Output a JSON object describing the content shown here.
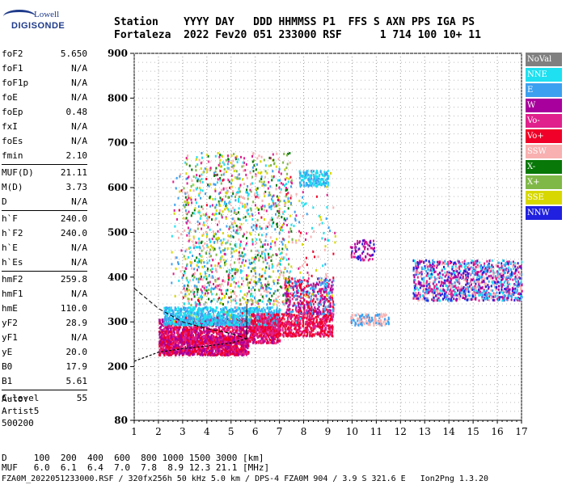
{
  "logo": {
    "top": "Lowell",
    "bottom": "DIGISONDE"
  },
  "header": {
    "line1": "Station    YYYY DAY   DDD HHMMSS P1  FFS S AXN PPS IGA PS",
    "line2": "Fortaleza  2022 Fev20 051 233000 RSF      1 714 100 10+ 11"
  },
  "params": [
    {
      "name": "foF2",
      "value": "5.650"
    },
    {
      "name": "foF1",
      "value": "N/A"
    },
    {
      "name": "foF1p",
      "value": "N/A"
    },
    {
      "name": "foE",
      "value": "N/A"
    },
    {
      "name": "foEp",
      "value": "0.48"
    },
    {
      "name": "fxI",
      "value": "N/A"
    },
    {
      "name": "foEs",
      "value": "N/A"
    },
    {
      "name": "fmin",
      "value": "2.10"
    },
    {
      "sep": true
    },
    {
      "name": "MUF(D)",
      "value": "21.11"
    },
    {
      "name": "M(D)",
      "value": "3.73"
    },
    {
      "name": "D",
      "value": "N/A"
    },
    {
      "sep": true
    },
    {
      "name": "h`F",
      "value": "240.0"
    },
    {
      "name": "h`F2",
      "value": "240.0"
    },
    {
      "name": "h`E",
      "value": "N/A"
    },
    {
      "name": "h`Es",
      "value": "N/A"
    },
    {
      "sep": true
    },
    {
      "name": "hmF2",
      "value": "259.8"
    },
    {
      "name": "hmF1",
      "value": "N/A"
    },
    {
      "name": "hmE",
      "value": "110.0"
    },
    {
      "name": "yF2",
      "value": "28.9"
    },
    {
      "name": "yF1",
      "value": "N/A"
    },
    {
      "name": "yE",
      "value": "20.0"
    },
    {
      "name": "B0",
      "value": "17.9"
    },
    {
      "name": "B1",
      "value": "5.61"
    },
    {
      "sep": true
    },
    {
      "name": "C-level",
      "value": "55"
    }
  ],
  "auto": {
    "line1": "Auto:",
    "line2": "Artist5",
    "line3": "500200"
  },
  "legend": [
    {
      "label": "NoVal",
      "color": "#808080"
    },
    {
      "label": "NNE",
      "color": "#1ee0f0"
    },
    {
      "label": "E",
      "color": "#3ca0f0"
    },
    {
      "label": "W",
      "color": "#a8009c"
    },
    {
      "label": "Vo-",
      "color": "#e0208c"
    },
    {
      "label": "Vo+",
      "color": "#f00028"
    },
    {
      "label": "SSW",
      "color": "#f8b0b0"
    },
    {
      "label": "X-",
      "color": "#087808"
    },
    {
      "label": "X+",
      "color": "#80b848"
    },
    {
      "label": "SSE",
      "color": "#d8d800"
    },
    {
      "label": "NNW",
      "color": "#2020e0"
    }
  ],
  "footer": {
    "d_line": "D     100  200  400  600  800 1000 1500 3000 [km]",
    "muf_line": "MUF   6.0  6.1  6.4  7.0  7.8  8.9 12.3 21.1 [MHz]",
    "file_line": "FZA0M_2022051233000.RSF / 320fx256h 50 kHz 5.0 km / DPS-4 FZA0M 904 / 3.9 S 321.6 E   Ion2Png 1.3.20"
  },
  "chart_data": {
    "type": "scatter",
    "xlim": [
      1,
      17
    ],
    "ylim": [
      80,
      900
    ],
    "x_ticks": [
      "1",
      "2",
      "3",
      "4",
      "5",
      "6",
      "7",
      "8",
      "9",
      "10",
      "11",
      "12",
      "13",
      "14",
      "15",
      "16",
      "17"
    ],
    "y_ticks": [
      "80",
      "200",
      "300",
      "400",
      "500",
      "600",
      "700",
      "800",
      "900"
    ],
    "trace": {
      "x": [
        1.0,
        2.0,
        3.0,
        4.0,
        5.0,
        5.65
      ],
      "y": [
        212,
        232,
        240,
        246,
        253,
        262
      ]
    },
    "model_profile": {
      "x": [
        1.0,
        2.0,
        3.0,
        4.0,
        5.0,
        5.65
      ],
      "y": [
        375,
        330,
        300,
        285,
        274,
        262
      ]
    },
    "clusters": [
      {
        "name": "F-layer O-trace",
        "colors": [
          "#f00028",
          "#e0208c",
          "#a8009c"
        ],
        "x": [
          2.0,
          5.7
        ],
        "y": [
          228,
          270
        ],
        "n": 1200
      },
      {
        "name": "F-layer spread mid",
        "colors": [
          "#e0208c",
          "#a8009c",
          "#f00028"
        ],
        "x": [
          2.0,
          7.0
        ],
        "y": [
          255,
          310
        ],
        "n": 1400
      },
      {
        "name": "F-layer E-echo",
        "colors": [
          "#3ca0f0",
          "#1ee0f0"
        ],
        "x": [
          2.2,
          7.0
        ],
        "y": [
          295,
          335
        ],
        "n": 900
      },
      {
        "name": "F-layer Vo+ band",
        "colors": [
          "#f00028",
          "#e0208c"
        ],
        "x": [
          5.8,
          9.2
        ],
        "y": [
          270,
          320
        ],
        "n": 700
      },
      {
        "name": "F-layer upper",
        "colors": [
          "#a8009c",
          "#e0208c",
          "#f00028",
          "#3ca0f0"
        ],
        "x": [
          7.2,
          9.2
        ],
        "y": [
          320,
          400
        ],
        "n": 450
      },
      {
        "name": "spread F",
        "colors": [
          "#d8d800",
          "#80b848",
          "#f8b0b0",
          "#3ca0f0",
          "#1ee0f0",
          "#e0208c",
          "#087808"
        ],
        "x": [
          3.0,
          7.5
        ],
        "y": [
          340,
          680
        ],
        "n": 1100
      },
      {
        "name": "spread F sparse",
        "colors": [
          "#d8d800",
          "#1ee0f0",
          "#f8b0b0",
          "#3ca0f0",
          "#e0208c",
          "#f00028"
        ],
        "x": [
          2.5,
          9.3
        ],
        "y": [
          300,
          640
        ],
        "n": 400
      },
      {
        "name": "multihop NNE",
        "colors": [
          "#1ee0f0",
          "#3ca0f0"
        ],
        "x": [
          7.8,
          9.0
        ],
        "y": [
          605,
          640
        ],
        "n": 160
      },
      {
        "name": "SSW patch",
        "colors": [
          "#f8b0b0",
          "#3ca0f0"
        ],
        "x": [
          9.9,
          11.5
        ],
        "y": [
          295,
          320
        ],
        "n": 120
      },
      {
        "name": "patch 10-11",
        "colors": [
          "#a8009c",
          "#2020e0",
          "#e0208c"
        ],
        "x": [
          9.9,
          10.9
        ],
        "y": [
          440,
          485
        ],
        "n": 70
      },
      {
        "name": "NNW blob",
        "colors": [
          "#2020e0",
          "#a8009c",
          "#e0208c",
          "#3ca0f0",
          "#1ee0f0",
          "#f8b0b0"
        ],
        "x": [
          12.5,
          17
        ],
        "y": [
          350,
          440
        ],
        "n": 1100
      }
    ]
  }
}
